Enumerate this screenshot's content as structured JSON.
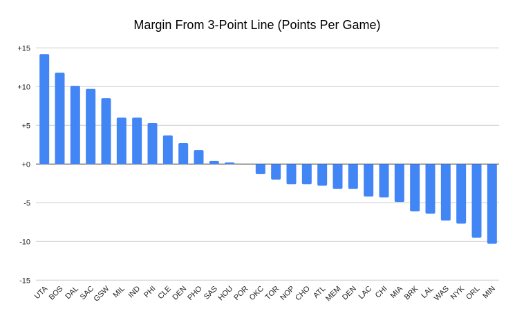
{
  "chart_data": {
    "type": "bar",
    "title": "Margin From 3-Point Line (Points Per Game)",
    "xlabel": "",
    "ylabel": "",
    "ylim": [
      -15,
      15
    ],
    "yticks": [
      15,
      10,
      5,
      0,
      -5,
      -10,
      -15
    ],
    "ytick_labels": [
      "+15",
      "+10",
      "+5",
      "+0",
      "-5",
      "-10",
      "-15"
    ],
    "grid": true,
    "legend": "none",
    "bar_color": "#4285f4",
    "categories": [
      "UTA",
      "BOS",
      "DAL",
      "SAC",
      "GSW",
      "MIL",
      "IND",
      "PHI",
      "CLE",
      "DEN",
      "PHO",
      "SAS",
      "HOU",
      "POR",
      "OKC",
      "TOR",
      "NOP",
      "CHO",
      "ATL",
      "MEM",
      "DEN",
      "LAC",
      "CHI",
      "MIA",
      "BRK",
      "LAL",
      "WAS",
      "NYK",
      "ORL",
      "MIN"
    ],
    "values": [
      14.2,
      11.8,
      10.1,
      9.7,
      8.5,
      6.0,
      6.0,
      5.3,
      3.7,
      2.7,
      1.8,
      0.4,
      0.2,
      0.0,
      -1.3,
      -2.0,
      -2.6,
      -2.6,
      -2.8,
      -3.2,
      -3.2,
      -4.2,
      -4.3,
      -4.9,
      -6.1,
      -6.4,
      -7.3,
      -7.7,
      -9.5,
      -10.3
    ]
  }
}
